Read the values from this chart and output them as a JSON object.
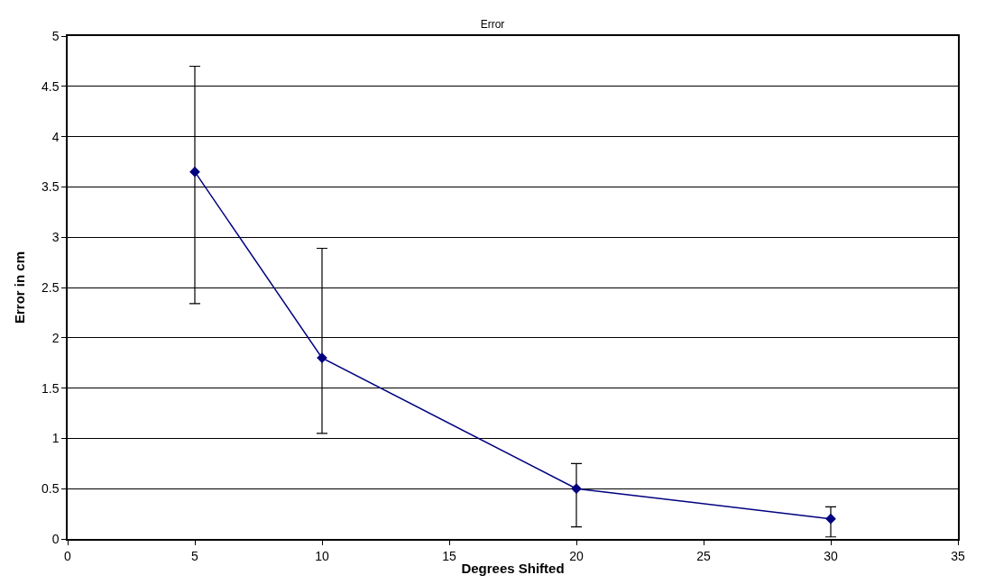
{
  "chart_data": {
    "type": "line",
    "title": "Error",
    "xlabel": "Degrees Shifted",
    "ylabel": "Error in cm",
    "x": [
      5,
      10,
      20,
      30
    ],
    "series": [
      {
        "color": "#000080",
        "values": [
          3.65,
          1.8,
          0.5,
          0.2
        ],
        "errors": [
          [
            2.34,
            4.7
          ],
          [
            1.05,
            2.89
          ],
          [
            0.12,
            0.75
          ],
          [
            0.02,
            0.32
          ]
        ]
      }
    ],
    "xlim": [
      0,
      35
    ],
    "xticks": [
      0,
      5,
      10,
      15,
      20,
      25,
      30,
      35
    ],
    "ylim": [
      0,
      5
    ],
    "yticks": [
      0,
      0.5,
      1,
      1.5,
      2,
      2.5,
      3,
      3.5,
      4,
      4.5,
      5
    ],
    "grid": "y",
    "marker": "diamond",
    "line_style": "solid"
  }
}
